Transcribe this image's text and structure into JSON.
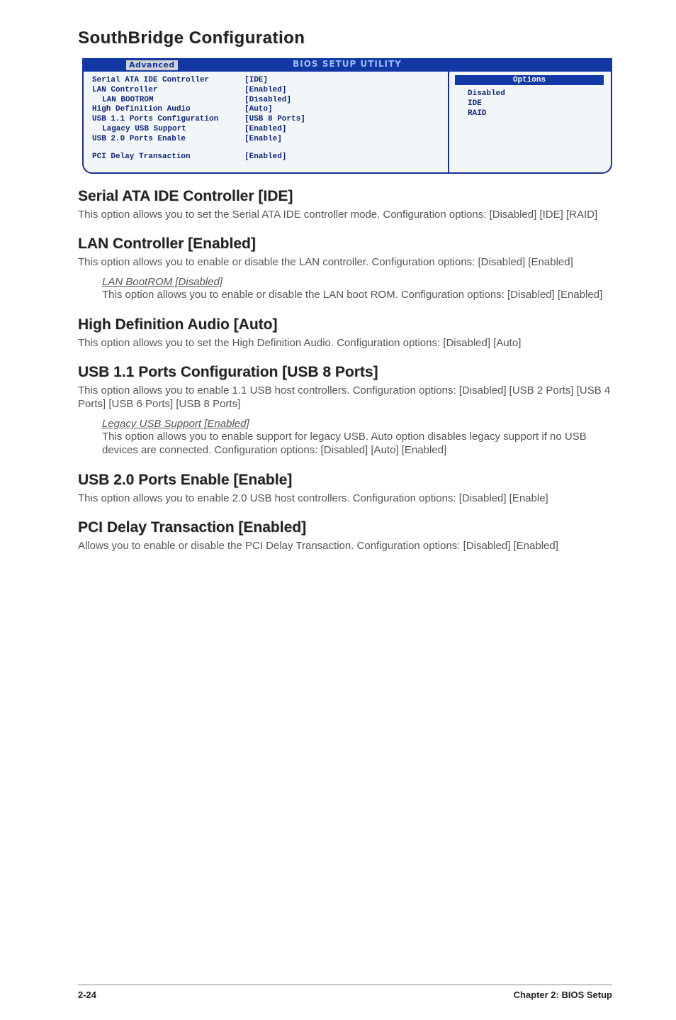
{
  "page_title": "SouthBridge Configuration",
  "bios": {
    "banner": "BIOS SETUP UTILITY",
    "tab": "Advanced",
    "rows": [
      {
        "label": "Serial ATA IDE Controller",
        "value": "[IDE]",
        "indent": false
      },
      {
        "label": "LAN Controller",
        "value": "[Enabled]",
        "indent": false
      },
      {
        "label": "LAN BOOTROM",
        "value": "[Disabled]",
        "indent": true
      },
      {
        "label": "High Definition Audio",
        "value": "[Auto]",
        "indent": false
      },
      {
        "label": "USB 1.1 Ports Configuration",
        "value": "[USB 8 Ports]",
        "indent": false
      },
      {
        "label": "Lagacy USB Support",
        "value": "[Enabled]",
        "indent": true
      },
      {
        "label": "USB 2.0 Ports Enable",
        "value": "[Enable]",
        "indent": false
      }
    ],
    "gap_row": {
      "label": "PCI Delay Transaction",
      "value": "[Enabled]"
    },
    "options_title": "Options",
    "options": [
      "Disabled",
      "IDE",
      "RAID"
    ]
  },
  "sections": [
    {
      "head": "Serial ATA IDE Controller [IDE]",
      "paras": [
        "This option allows you to set the Serial ATA IDE controller mode. Configuration options: [Disabled] [IDE] [RAID]"
      ]
    },
    {
      "head": "LAN Controller [Enabled]",
      "paras": [
        "This option allows you to enable or disable the LAN controller. Configuration options: [Disabled] [Enabled]"
      ],
      "sub": {
        "label": "LAN BootROM [Disabled]",
        "para": "This option allows you to enable or disable the LAN boot ROM. Configuration options: [Disabled] [Enabled]"
      }
    },
    {
      "head": "High Definition Audio [Auto]",
      "paras": [
        "This option allows you to set the High Definition Audio. Configuration options: [Disabled] [Auto]"
      ]
    },
    {
      "head": "USB 1.1 Ports Configuration [USB 8 Ports]",
      "paras": [
        "This option allows you to enable 1.1 USB host controllers. Configuration options: [Disabled] [USB 2 Ports] [USB 4 Ports]  [USB 6 Ports] [USB 8 Ports]"
      ],
      "sub": {
        "label": "Legacy USB Support [Enabled]",
        "para": "This option allows you to enable support for legacy USB. Auto option disables legacy support if no USB devices are connected. Configuration options: [Disabled] [Auto] [Enabled]"
      }
    },
    {
      "head": "USB 2.0 Ports Enable [Enable]",
      "paras": [
        "This option allows you to enable 2.0 USB host controllers. Configuration options: [Disabled] [Enable]"
      ]
    },
    {
      "head": "PCI Delay Transaction [Enabled]",
      "paras": [
        "Allows you to enable or disable the PCI Delay Transaction. Configuration options: [Disabled] [Enabled]"
      ]
    }
  ],
  "footer": {
    "page": "2-24",
    "chapter": "Chapter 2: BIOS Setup"
  }
}
